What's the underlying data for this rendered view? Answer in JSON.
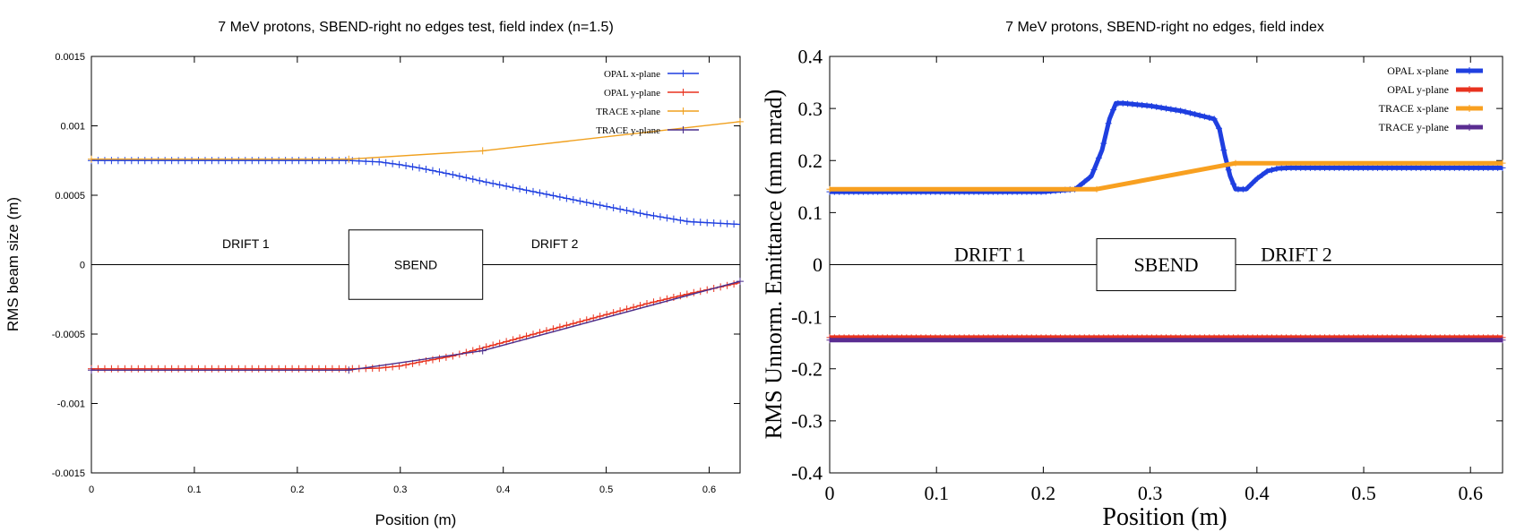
{
  "chart_data": [
    {
      "type": "line",
      "title": "7 MeV protons, SBEND-right no edges test, field index (n=1.5)",
      "xlabel": "Position (m)",
      "ylabel": "RMS beam size (m)",
      "xlim": [
        0,
        0.63
      ],
      "ylim": [
        -0.0015,
        0.0015
      ],
      "xticks": [
        0,
        0.1,
        0.2,
        0.3,
        0.4,
        0.5,
        0.6
      ],
      "xtick_labels": [
        "0",
        "0.1",
        "0.2",
        "0.3",
        "0.4",
        "0.5",
        "0.6"
      ],
      "yticks": [
        0.0015,
        0.001,
        0.0005,
        0,
        -0.0005,
        -0.001,
        -0.0015
      ],
      "ytick_labels": [
        "0.0015",
        "0.001",
        "0.0005",
        "0",
        "-0.0005",
        "-0.001",
        "-0.0015"
      ],
      "legend_position": "top-right",
      "annotations": [
        {
          "text": "DRIFT 1",
          "x": 0.15,
          "y": 0.00015,
          "boxed": false
        },
        {
          "text": "SBEND",
          "x": 0.31,
          "y": 0.0,
          "boxed": true,
          "box_x": [
            0.25,
            0.38
          ],
          "box_y": [
            -0.00025,
            0.00025
          ]
        },
        {
          "text": "DRIFT 2",
          "x": 0.45,
          "y": 0.00015,
          "boxed": false
        }
      ],
      "series": [
        {
          "name": "OPAL x-plane",
          "color": "#1f3fe0",
          "marker": "plus",
          "x": [
            0,
            0.05,
            0.1,
            0.15,
            0.2,
            0.25,
            0.28,
            0.3,
            0.32,
            0.35,
            0.38,
            0.42,
            0.46,
            0.5,
            0.54,
            0.58,
            0.63
          ],
          "y": [
            0.00075,
            0.00075,
            0.00075,
            0.00075,
            0.00075,
            0.00075,
            0.00074,
            0.00072,
            0.000695,
            0.00065,
            0.0006,
            0.00054,
            0.00048,
            0.00042,
            0.00036,
            0.00031,
            0.00029
          ]
        },
        {
          "name": "OPAL y-plane",
          "color": "#e8321e",
          "marker": "plus",
          "x": [
            0,
            0.05,
            0.1,
            0.15,
            0.2,
            0.25,
            0.28,
            0.3,
            0.32,
            0.35,
            0.38,
            0.42,
            0.46,
            0.5,
            0.54,
            0.58,
            0.63
          ],
          "y": [
            -0.00075,
            -0.00075,
            -0.00075,
            -0.00075,
            -0.00075,
            -0.00075,
            -0.000745,
            -0.00073,
            -0.0007,
            -0.00066,
            -0.0006,
            -0.00052,
            -0.00044,
            -0.00036,
            -0.00028,
            -0.00021,
            -0.00013
          ]
        },
        {
          "name": "TRACE x-plane",
          "color": "#f0a01e",
          "marker": "plus",
          "x": [
            0,
            0.25,
            0.38,
            0.63
          ],
          "y": [
            0.00076,
            0.00076,
            0.00082,
            0.00103
          ]
        },
        {
          "name": "TRACE y-plane",
          "color": "#4a2d8c",
          "marker": "plus",
          "x": [
            0,
            0.25,
            0.38,
            0.63
          ],
          "y": [
            -0.00076,
            -0.00076,
            -0.00062,
            -0.00012
          ]
        }
      ]
    },
    {
      "type": "line",
      "title": "7 MeV protons, SBEND-right no edges, field index",
      "xlabel": "Position (m)",
      "ylabel": "RMS Unnorm. Emittance (mm mrad)",
      "xlim": [
        0,
        0.63
      ],
      "ylim": [
        -0.4,
        0.4
      ],
      "xticks": [
        0,
        0.1,
        0.2,
        0.3,
        0.4,
        0.5,
        0.6
      ],
      "xtick_labels": [
        "0",
        "0.1",
        "0.2",
        "0.3",
        "0.4",
        "0.5",
        "0.6"
      ],
      "yticks": [
        0.4,
        0.3,
        0.2,
        0.1,
        0,
        -0.1,
        -0.2,
        -0.3,
        -0.4
      ],
      "ytick_labels": [
        "0.4",
        "0.3",
        "0.2",
        "0.1",
        "0",
        "-0.1",
        "-0.2",
        "-0.3",
        "-0.4"
      ],
      "legend_position": "top-right",
      "annotations": [
        {
          "text": "DRIFT 1",
          "x": 0.15,
          "y": 0.02,
          "boxed": false
        },
        {
          "text": "SBEND",
          "x": 0.31,
          "y": 0.0,
          "boxed": true,
          "box_x": [
            0.25,
            0.38
          ],
          "box_y": [
            -0.05,
            0.05
          ]
        },
        {
          "text": "DRIFT 2",
          "x": 0.437,
          "y": 0.02,
          "boxed": false
        }
      ],
      "series": [
        {
          "name": "OPAL x-plane",
          "color": "#1f3fe0",
          "marker": "plus",
          "x": [
            0,
            0.1,
            0.2,
            0.23,
            0.245,
            0.255,
            0.262,
            0.268,
            0.275,
            0.3,
            0.33,
            0.36,
            0.365,
            0.37,
            0.375,
            0.38,
            0.39,
            0.4,
            0.41,
            0.42,
            0.43,
            0.5,
            0.63
          ],
          "y": [
            0.14,
            0.14,
            0.14,
            0.145,
            0.17,
            0.22,
            0.28,
            0.31,
            0.31,
            0.305,
            0.295,
            0.28,
            0.26,
            0.21,
            0.17,
            0.145,
            0.145,
            0.165,
            0.18,
            0.185,
            0.186,
            0.186,
            0.186
          ]
        },
        {
          "name": "OPAL y-plane",
          "color": "#e8321e",
          "marker": "plus",
          "x": [
            0,
            0.63
          ],
          "y": [
            -0.14,
            -0.14
          ]
        },
        {
          "name": "TRACE x-plane",
          "color": "#f8a020",
          "marker": "plus",
          "x": [
            0,
            0.25,
            0.38,
            0.63
          ],
          "y": [
            0.145,
            0.145,
            0.195,
            0.195
          ]
        },
        {
          "name": "TRACE y-plane",
          "color": "#5a2d91",
          "marker": "plus",
          "x": [
            0,
            0.63
          ],
          "y": [
            -0.145,
            -0.145
          ]
        }
      ]
    }
  ]
}
